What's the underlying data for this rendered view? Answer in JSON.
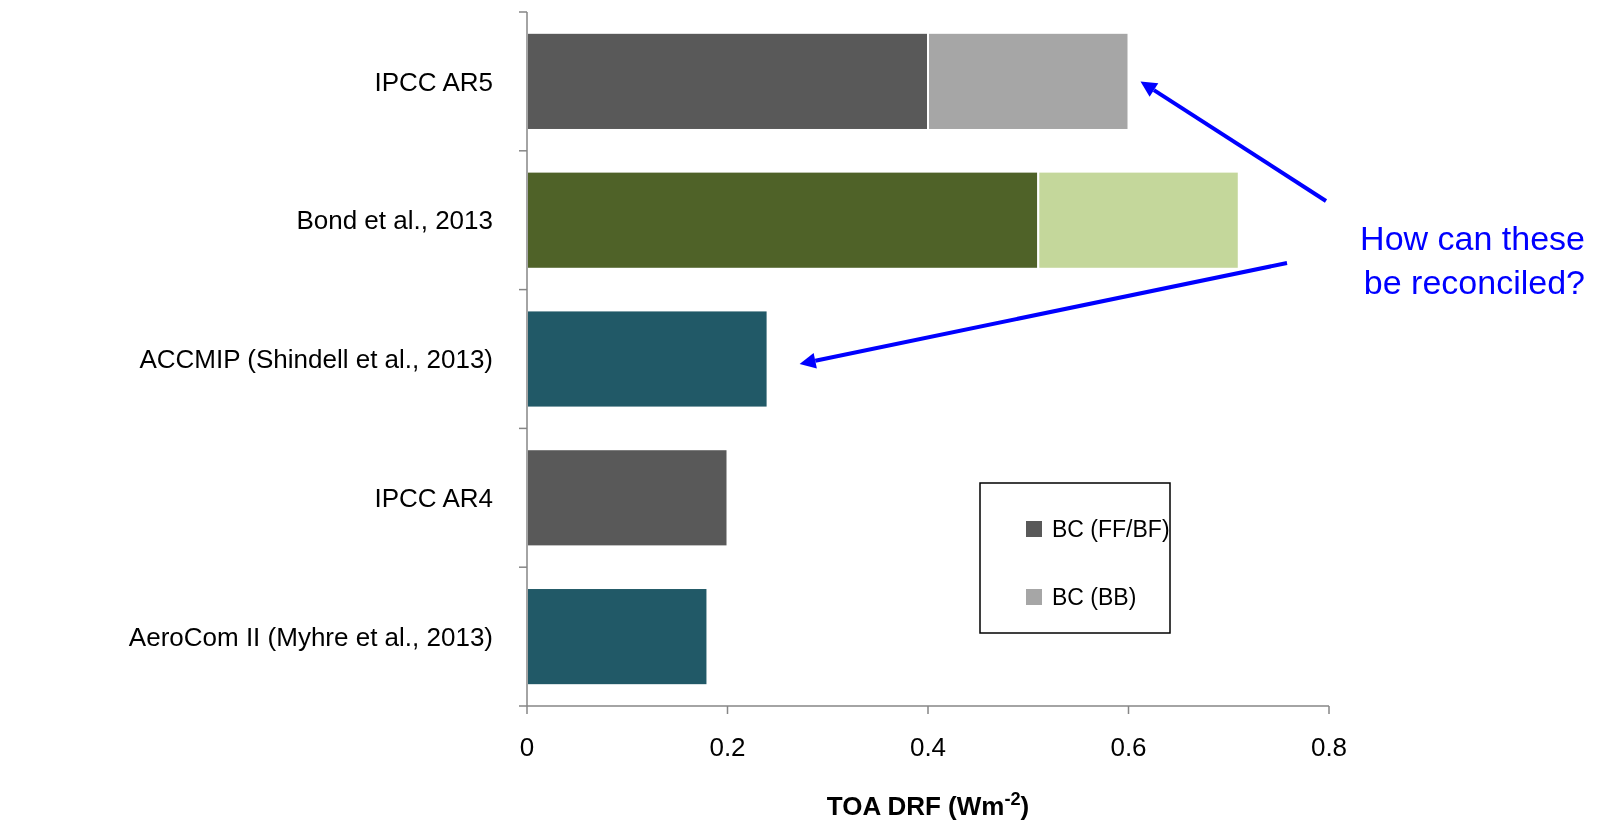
{
  "chart_data": {
    "type": "bar",
    "orientation": "horizontal",
    "stacked": true,
    "categories": [
      "IPCC AR5",
      "Bond et al., 2013",
      "ACCMIP (Shindell et al., 2013)",
      "IPCC AR4",
      "AeroCom II (Myhre et al., 2013)"
    ],
    "series": [
      {
        "name": "BC (FF/BF)",
        "color": "#595959",
        "colors": [
          "#595959",
          "#4f6228",
          "#215967",
          "#595959",
          "#215967"
        ],
        "values": [
          0.4,
          0.51,
          0.24,
          0.2,
          0.18
        ]
      },
      {
        "name": "BC (BB)",
        "color": "#a6a6a6",
        "colors": [
          "#a6a6a6",
          "#c4d79b",
          null,
          null,
          null
        ],
        "values": [
          0.2,
          0.2,
          null,
          null,
          null
        ]
      }
    ],
    "xlim": [
      0,
      0.8
    ],
    "xticks": [
      0,
      0.2,
      0.4,
      0.6,
      0.8
    ],
    "xlabel": "TOA DRF (Wm$^{-2}$)",
    "annotations": [
      "How can these be reconciled?"
    ],
    "legend": "bottom right"
  }
}
